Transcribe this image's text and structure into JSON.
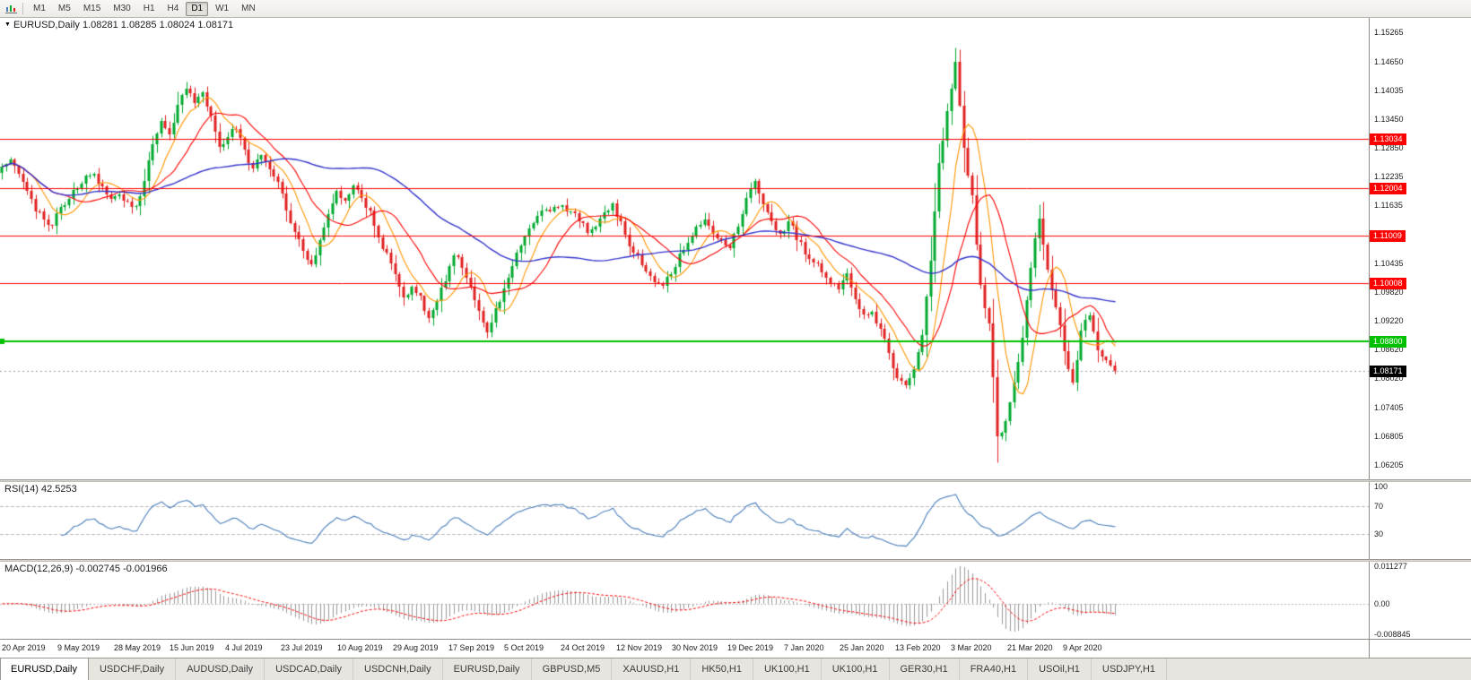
{
  "toolbar": {
    "timeframes": [
      "M1",
      "M5",
      "M15",
      "M30",
      "H1",
      "H4",
      "D1",
      "W1",
      "MN"
    ],
    "active": "D1"
  },
  "chart": {
    "symbol": "EURUSD",
    "timeframe": "Daily",
    "title_line": "EURUSD,Daily 1.08281 1.08285 1.08024 1.08171",
    "quote": {
      "open": "1.08281",
      "high": "1.08285",
      "low": "1.08024",
      "close": "1.08171"
    }
  },
  "chart_data": {
    "type": "candlestick",
    "symbol": "EURUSD",
    "period": "Daily",
    "x_labels": [
      "20 Apr 2019",
      "9 May 2019",
      "28 May 2019",
      "15 Jun 2019",
      "4 Jul 2019",
      "23 Jul 2019",
      "10 Aug 2019",
      "29 Aug 2019",
      "17 Sep 2019",
      "5 Oct 2019",
      "24 Oct 2019",
      "12 Nov 2019",
      "30 Nov 2019",
      "19 Dec 2019",
      "7 Jan 2020",
      "25 Jan 2020",
      "13 Feb 2020",
      "3 Mar 2020",
      "21 Mar 2020",
      "9 Apr 2020"
    ],
    "closes": [
      1.1245,
      1.1262,
      1.1228,
      1.1192,
      1.1155,
      1.1132,
      1.1124,
      1.1162,
      1.118,
      1.1198,
      1.1225,
      1.1232,
      1.1205,
      1.1178,
      1.119,
      1.1172,
      1.116,
      1.1215,
      1.1292,
      1.134,
      1.131,
      1.1375,
      1.1408,
      1.138,
      1.1398,
      1.135,
      1.1286,
      1.1305,
      1.1325,
      1.1278,
      1.1242,
      1.127,
      1.1238,
      1.121,
      1.1152,
      1.1105,
      1.1068,
      1.1042,
      1.109,
      1.1145,
      1.1196,
      1.117,
      1.1205,
      1.1182,
      1.115,
      1.1098,
      1.1062,
      1.102,
      1.0972,
      1.0998,
      1.0975,
      1.0928,
      1.0962,
      1.1008,
      1.1062,
      1.1035,
      1.099,
      1.0945,
      1.0902,
      1.0952,
      1.0988,
      1.1035,
      1.108,
      1.1115,
      1.1145,
      1.1158,
      1.116,
      1.1162,
      1.115,
      1.113,
      1.1108,
      1.1118,
      1.1152,
      1.1168,
      1.1128,
      1.1082,
      1.106,
      1.1028,
      1.1002,
      1.0998,
      1.1022,
      1.1062,
      1.1088,
      1.1118,
      1.1135,
      1.1108,
      1.109,
      1.1075,
      1.1122,
      1.1178,
      1.1216,
      1.1165,
      1.1132,
      1.1108,
      1.1128,
      1.1095,
      1.1062,
      1.1045,
      1.1025,
      1.1,
      1.0988,
      1.1018,
      1.0965,
      1.0935,
      1.094,
      1.0905,
      1.0858,
      1.0802,
      1.0788,
      1.0825,
      1.0892,
      1.1052,
      1.125,
      1.136,
      1.1468,
      1.1285,
      1.1185,
      1.0995,
      1.0915,
      1.0678,
      1.0715,
      1.0792,
      1.0888,
      1.1035,
      1.1138,
      1.103,
      1.0952,
      1.0858,
      1.0795,
      1.0902,
      1.0938,
      1.0862,
      1.0838,
      1.08171
    ],
    "y_axis_ticks": [
      "1.15265",
      "1.14650",
      "1.14035",
      "1.13450",
      "1.12850",
      "1.12235",
      "1.11635",
      "1.10435",
      "1.09820",
      "1.09220",
      "1.08620",
      "1.08020",
      "1.07405",
      "1.06805",
      "1.06205"
    ],
    "y_range": [
      1.0591,
      1.1556
    ],
    "levels": [
      {
        "price": 1.13034,
        "label": "1.13034",
        "color": "#fe0000",
        "type": "resistance"
      },
      {
        "price": 1.12004,
        "label": "1.12004",
        "color": "#fe0000",
        "type": "resistance"
      },
      {
        "price": 1.11009,
        "label": "1.11009",
        "color": "#fe0000",
        "type": "resistance"
      },
      {
        "price": 1.10008,
        "label": "1.10008",
        "color": "#fe0000",
        "type": "resistance"
      }
    ],
    "support_level": {
      "price": 1.088,
      "label": "1.08800",
      "color": "#00c000"
    },
    "current_price": {
      "price": 1.08171,
      "label": "1.08171"
    },
    "moving_averages": [
      {
        "period": 8,
        "color": "#ff9500"
      },
      {
        "period": 16,
        "color": "#fe0000"
      },
      {
        "period": 55,
        "color": "#3333cc"
      }
    ],
    "indicators": {
      "rsi": {
        "title": "RSI(14) 42.5253",
        "period": 14,
        "value": 42.5253,
        "axis_labels": [
          "100",
          "70",
          "30"
        ],
        "axis_values": [
          100,
          70,
          30
        ],
        "guide_levels": [
          70,
          30
        ],
        "range": [
          0,
          100
        ]
      },
      "macd": {
        "title": "MACD(12,26,9) -0.002745 -0.001966",
        "fast": 12,
        "slow": 26,
        "signal": 9,
        "macd_value": -0.002745,
        "signal_value": -0.001966,
        "axis_labels": [
          "0.011277",
          "0.00",
          "-0.008845"
        ],
        "axis_values": [
          0.011277,
          0,
          -0.008845
        ],
        "range": [
          -0.0095,
          0.0118
        ]
      }
    }
  },
  "tabs": [
    {
      "label": "EURUSD,Daily",
      "active": true
    },
    {
      "label": "USDCHF,Daily",
      "active": false
    },
    {
      "label": "AUDUSD,Daily",
      "active": false
    },
    {
      "label": "USDCAD,Daily",
      "active": false
    },
    {
      "label": "USDCNH,Daily",
      "active": false
    },
    {
      "label": "EURUSD,Daily",
      "active": false
    },
    {
      "label": "GBPUSD,M5",
      "active": false
    },
    {
      "label": "XAUUSD,H1",
      "active": false
    },
    {
      "label": "HK50,H1",
      "active": false
    },
    {
      "label": "UK100,H1",
      "active": false
    },
    {
      "label": "UK100,H1",
      "active": false
    },
    {
      "label": "GER30,H1",
      "active": false
    },
    {
      "label": "FRA40,H1",
      "active": false
    },
    {
      "label": "USOil,H1",
      "active": false
    },
    {
      "label": "USDJPY,H1",
      "active": false
    }
  ],
  "colors": {
    "candle_up": "#00a92e",
    "candle_down": "#e02020",
    "ma_fast": "#ff9500",
    "ma_mid": "#fe0000",
    "ma_slow": "#3333cc",
    "level_red": "#fe0000",
    "level_green": "#00c000",
    "rsi_line": "#4a7ebb",
    "macd_histogram": "#9a9a9a",
    "macd_signal": "#fe0000",
    "current_price_chip": "#000000",
    "guide_dash": "#b8b8b8"
  }
}
